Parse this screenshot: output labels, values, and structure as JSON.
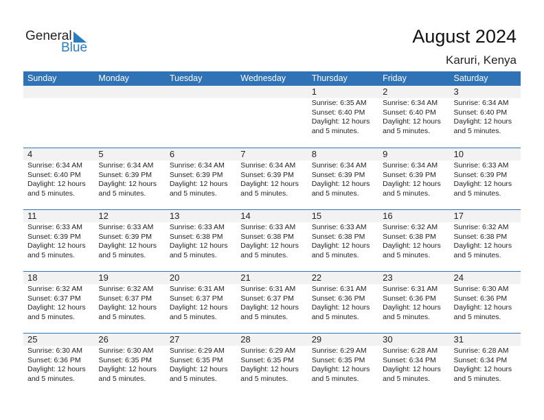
{
  "logo": {
    "text_general": "General",
    "text_blue": "Blue",
    "accent": "#2a7bc0"
  },
  "header": {
    "title": "August 2024",
    "location": "Karuri, Kenya"
  },
  "weekdays": [
    "Sunday",
    "Monday",
    "Tuesday",
    "Wednesday",
    "Thursday",
    "Friday",
    "Saturday"
  ],
  "colors": {
    "header_bg": "#2f72b5",
    "day_bar": "#f2f2f2"
  },
  "weeks": [
    [
      null,
      null,
      null,
      null,
      {
        "day": "1",
        "sunrise": "Sunrise: 6:35 AM",
        "sunset": "Sunset: 6:40 PM",
        "daylight": "Daylight: 12 hours",
        "daylight2": "and 5 minutes."
      },
      {
        "day": "2",
        "sunrise": "Sunrise: 6:34 AM",
        "sunset": "Sunset: 6:40 PM",
        "daylight": "Daylight: 12 hours",
        "daylight2": "and 5 minutes."
      },
      {
        "day": "3",
        "sunrise": "Sunrise: 6:34 AM",
        "sunset": "Sunset: 6:40 PM",
        "daylight": "Daylight: 12 hours",
        "daylight2": "and 5 minutes."
      }
    ],
    [
      {
        "day": "4",
        "sunrise": "Sunrise: 6:34 AM",
        "sunset": "Sunset: 6:40 PM",
        "daylight": "Daylight: 12 hours",
        "daylight2": "and 5 minutes."
      },
      {
        "day": "5",
        "sunrise": "Sunrise: 6:34 AM",
        "sunset": "Sunset: 6:39 PM",
        "daylight": "Daylight: 12 hours",
        "daylight2": "and 5 minutes."
      },
      {
        "day": "6",
        "sunrise": "Sunrise: 6:34 AM",
        "sunset": "Sunset: 6:39 PM",
        "daylight": "Daylight: 12 hours",
        "daylight2": "and 5 minutes."
      },
      {
        "day": "7",
        "sunrise": "Sunrise: 6:34 AM",
        "sunset": "Sunset: 6:39 PM",
        "daylight": "Daylight: 12 hours",
        "daylight2": "and 5 minutes."
      },
      {
        "day": "8",
        "sunrise": "Sunrise: 6:34 AM",
        "sunset": "Sunset: 6:39 PM",
        "daylight": "Daylight: 12 hours",
        "daylight2": "and 5 minutes."
      },
      {
        "day": "9",
        "sunrise": "Sunrise: 6:34 AM",
        "sunset": "Sunset: 6:39 PM",
        "daylight": "Daylight: 12 hours",
        "daylight2": "and 5 minutes."
      },
      {
        "day": "10",
        "sunrise": "Sunrise: 6:33 AM",
        "sunset": "Sunset: 6:39 PM",
        "daylight": "Daylight: 12 hours",
        "daylight2": "and 5 minutes."
      }
    ],
    [
      {
        "day": "11",
        "sunrise": "Sunrise: 6:33 AM",
        "sunset": "Sunset: 6:39 PM",
        "daylight": "Daylight: 12 hours",
        "daylight2": "and 5 minutes."
      },
      {
        "day": "12",
        "sunrise": "Sunrise: 6:33 AM",
        "sunset": "Sunset: 6:39 PM",
        "daylight": "Daylight: 12 hours",
        "daylight2": "and 5 minutes."
      },
      {
        "day": "13",
        "sunrise": "Sunrise: 6:33 AM",
        "sunset": "Sunset: 6:38 PM",
        "daylight": "Daylight: 12 hours",
        "daylight2": "and 5 minutes."
      },
      {
        "day": "14",
        "sunrise": "Sunrise: 6:33 AM",
        "sunset": "Sunset: 6:38 PM",
        "daylight": "Daylight: 12 hours",
        "daylight2": "and 5 minutes."
      },
      {
        "day": "15",
        "sunrise": "Sunrise: 6:33 AM",
        "sunset": "Sunset: 6:38 PM",
        "daylight": "Daylight: 12 hours",
        "daylight2": "and 5 minutes."
      },
      {
        "day": "16",
        "sunrise": "Sunrise: 6:32 AM",
        "sunset": "Sunset: 6:38 PM",
        "daylight": "Daylight: 12 hours",
        "daylight2": "and 5 minutes."
      },
      {
        "day": "17",
        "sunrise": "Sunrise: 6:32 AM",
        "sunset": "Sunset: 6:38 PM",
        "daylight": "Daylight: 12 hours",
        "daylight2": "and 5 minutes."
      }
    ],
    [
      {
        "day": "18",
        "sunrise": "Sunrise: 6:32 AM",
        "sunset": "Sunset: 6:37 PM",
        "daylight": "Daylight: 12 hours",
        "daylight2": "and 5 minutes."
      },
      {
        "day": "19",
        "sunrise": "Sunrise: 6:32 AM",
        "sunset": "Sunset: 6:37 PM",
        "daylight": "Daylight: 12 hours",
        "daylight2": "and 5 minutes."
      },
      {
        "day": "20",
        "sunrise": "Sunrise: 6:31 AM",
        "sunset": "Sunset: 6:37 PM",
        "daylight": "Daylight: 12 hours",
        "daylight2": "and 5 minutes."
      },
      {
        "day": "21",
        "sunrise": "Sunrise: 6:31 AM",
        "sunset": "Sunset: 6:37 PM",
        "daylight": "Daylight: 12 hours",
        "daylight2": "and 5 minutes."
      },
      {
        "day": "22",
        "sunrise": "Sunrise: 6:31 AM",
        "sunset": "Sunset: 6:36 PM",
        "daylight": "Daylight: 12 hours",
        "daylight2": "and 5 minutes."
      },
      {
        "day": "23",
        "sunrise": "Sunrise: 6:31 AM",
        "sunset": "Sunset: 6:36 PM",
        "daylight": "Daylight: 12 hours",
        "daylight2": "and 5 minutes."
      },
      {
        "day": "24",
        "sunrise": "Sunrise: 6:30 AM",
        "sunset": "Sunset: 6:36 PM",
        "daylight": "Daylight: 12 hours",
        "daylight2": "and 5 minutes."
      }
    ],
    [
      {
        "day": "25",
        "sunrise": "Sunrise: 6:30 AM",
        "sunset": "Sunset: 6:36 PM",
        "daylight": "Daylight: 12 hours",
        "daylight2": "and 5 minutes."
      },
      {
        "day": "26",
        "sunrise": "Sunrise: 6:30 AM",
        "sunset": "Sunset: 6:35 PM",
        "daylight": "Daylight: 12 hours",
        "daylight2": "and 5 minutes."
      },
      {
        "day": "27",
        "sunrise": "Sunrise: 6:29 AM",
        "sunset": "Sunset: 6:35 PM",
        "daylight": "Daylight: 12 hours",
        "daylight2": "and 5 minutes."
      },
      {
        "day": "28",
        "sunrise": "Sunrise: 6:29 AM",
        "sunset": "Sunset: 6:35 PM",
        "daylight": "Daylight: 12 hours",
        "daylight2": "and 5 minutes."
      },
      {
        "day": "29",
        "sunrise": "Sunrise: 6:29 AM",
        "sunset": "Sunset: 6:35 PM",
        "daylight": "Daylight: 12 hours",
        "daylight2": "and 5 minutes."
      },
      {
        "day": "30",
        "sunrise": "Sunrise: 6:28 AM",
        "sunset": "Sunset: 6:34 PM",
        "daylight": "Daylight: 12 hours",
        "daylight2": "and 5 minutes."
      },
      {
        "day": "31",
        "sunrise": "Sunrise: 6:28 AM",
        "sunset": "Sunset: 6:34 PM",
        "daylight": "Daylight: 12 hours",
        "daylight2": "and 5 minutes."
      }
    ]
  ]
}
